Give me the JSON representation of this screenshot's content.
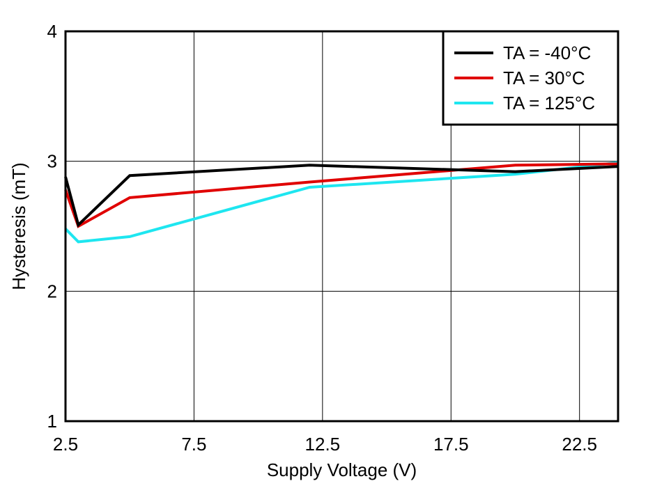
{
  "chart_data": {
    "type": "line",
    "title": "",
    "xlabel": "Supply Voltage (V)",
    "ylabel": "Hysteresis (mT)",
    "xlim": [
      2.5,
      24
    ],
    "ylim": [
      1,
      4
    ],
    "grid": true,
    "legend_position": "top-right",
    "x_ticks": [
      2.5,
      7.5,
      12.5,
      17.5,
      22.5
    ],
    "x_tick_labels": [
      "2.5",
      "7.5",
      "12.5",
      "17.5",
      "22.5"
    ],
    "y_ticks": [
      1,
      2,
      3,
      4
    ],
    "y_tick_labels": [
      "1",
      "2",
      "3",
      "4"
    ],
    "series": [
      {
        "name": "TA = -40°C",
        "color": "#000000",
        "x": [
          2.5,
          3,
          5,
          12,
          20,
          24
        ],
        "y": [
          2.88,
          2.51,
          2.89,
          2.97,
          2.92,
          2.96
        ]
      },
      {
        "name": "TA = 30°C",
        "color": "#e00000",
        "x": [
          2.5,
          3,
          5,
          12,
          20,
          24
        ],
        "y": [
          2.78,
          2.5,
          2.72,
          2.84,
          2.97,
          2.98
        ]
      },
      {
        "name": "TA = 125°C",
        "color": "#1ee6f0",
        "x": [
          2.5,
          3,
          5,
          12,
          20,
          24
        ],
        "y": [
          2.48,
          2.38,
          2.42,
          2.8,
          2.9,
          2.99
        ]
      }
    ]
  }
}
